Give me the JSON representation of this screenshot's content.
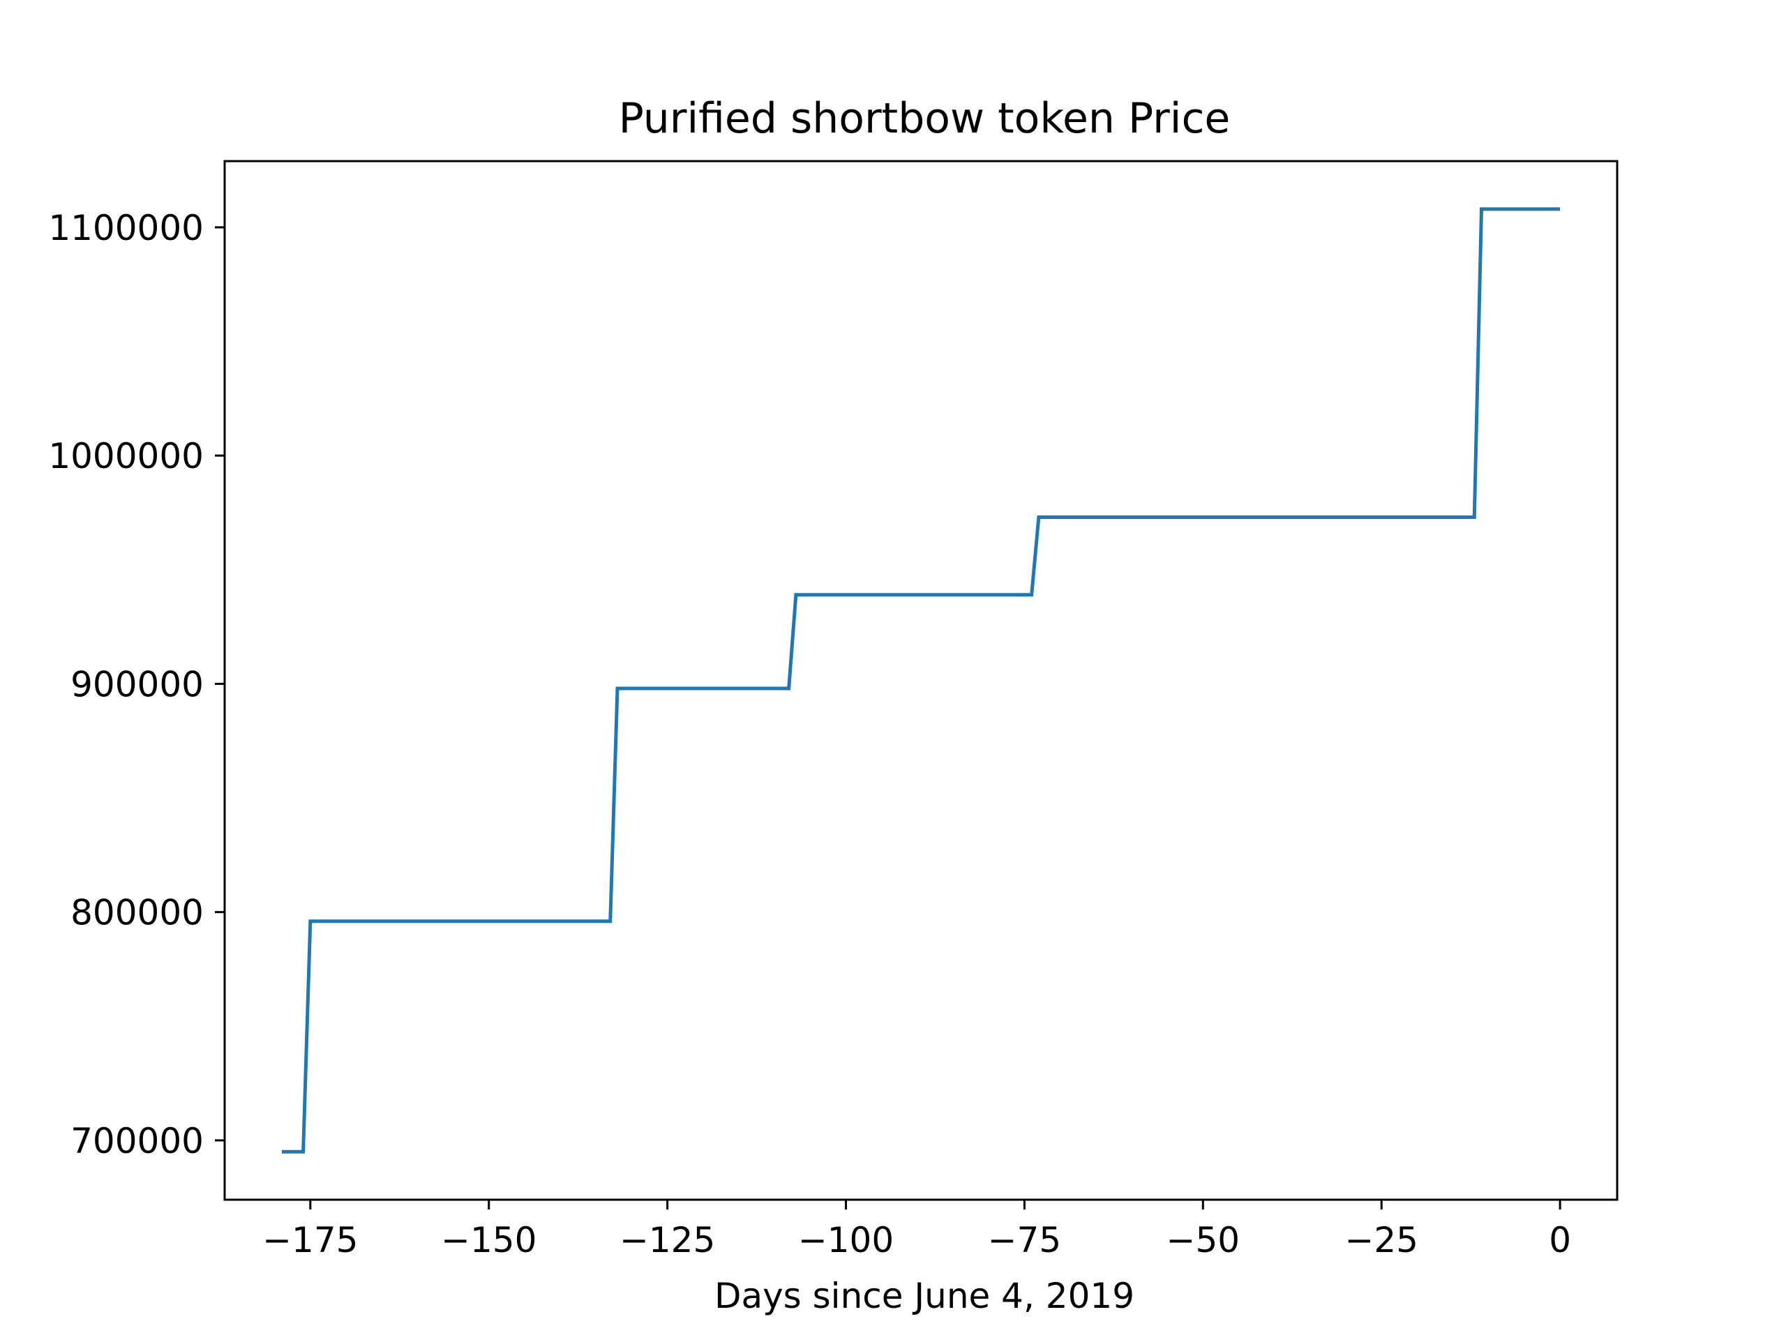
{
  "chart_data": {
    "type": "line",
    "title": "Purified shortbow token Price",
    "xlabel": "Days since June 4, 2019",
    "ylabel": "",
    "xlim": [
      -187,
      8
    ],
    "ylim": [
      674000,
      1129000
    ],
    "x_ticks": [
      -175,
      -150,
      -125,
      -100,
      -75,
      -50,
      -25,
      0
    ],
    "x_tick_labels": [
      "−175",
      "−150",
      "−125",
      "−100",
      "−75",
      "−50",
      "−25",
      "0"
    ],
    "y_ticks": [
      700000,
      800000,
      900000,
      1000000,
      1100000
    ],
    "y_tick_labels": [
      "700000",
      "800000",
      "900000",
      "1000000",
      "1100000"
    ],
    "grid": false,
    "legend": false,
    "series": [
      {
        "color": "#1f77b4",
        "x": [
          -179,
          -176,
          -175,
          -133,
          -132,
          -108,
          -107,
          -74,
          -73,
          -12,
          -11,
          0
        ],
        "y": [
          695000,
          695000,
          796000,
          796000,
          898000,
          898000,
          939000,
          939000,
          973000,
          973000,
          1108000,
          1108000
        ]
      }
    ]
  }
}
